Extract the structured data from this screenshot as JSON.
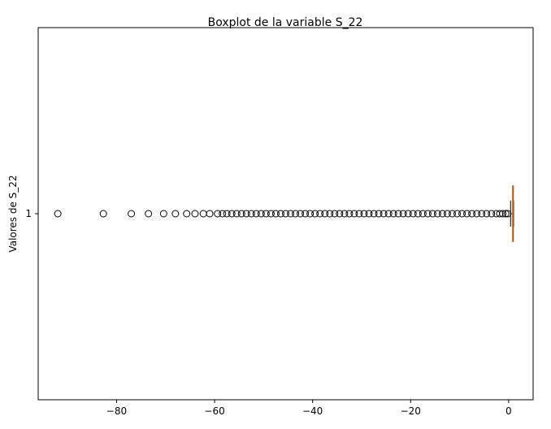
{
  "chart_data": {
    "type": "boxplot",
    "orientation": "horizontal",
    "title": "Boxplot de la variable S_22",
    "xlabel": "",
    "ylabel": "Valores de S_22",
    "category_labels": [
      "1"
    ],
    "xlim": [
      -96,
      5
    ],
    "x_ticks": [
      -80,
      -60,
      -40,
      -20,
      0
    ],
    "x_tick_labels": [
      "−80",
      "−60",
      "−40",
      "−20",
      "0"
    ],
    "box": {
      "whisker_low": 0.4,
      "q1": 0.8,
      "median": 0.85,
      "q3": 0.9,
      "whisker_high": 1.0
    },
    "outliers": [
      -92,
      -82.7,
      -77,
      -73.5,
      -70.4,
      -68,
      -65.7,
      -64,
      -62.3,
      -61,
      -59.4,
      -58.4,
      -57.5,
      -56.5,
      -55.5,
      -54.5,
      -53.5,
      -52.5,
      -51.5,
      -50.5,
      -49.5,
      -48.5,
      -47.5,
      -46.5,
      -45.5,
      -44.5,
      -43.5,
      -42.5,
      -41.5,
      -40.5,
      -39.5,
      -38.5,
      -37.5,
      -36.5,
      -35.5,
      -34.5,
      -33.5,
      -32.5,
      -31.5,
      -30.5,
      -29.5,
      -28.5,
      -27.5,
      -26.5,
      -25.5,
      -24.5,
      -23.5,
      -22.5,
      -21.5,
      -20.5,
      -19.5,
      -18.5,
      -17.5,
      -16.5,
      -15.5,
      -14.5,
      -13.5,
      -12.5,
      -11.5,
      -10.5,
      -9.5,
      -8.5,
      -7.5,
      -6.5,
      -5.5,
      -4.5,
      -3.5,
      -2.5,
      -1.8,
      -1.2,
      -0.6,
      -0.2
    ],
    "colors": {
      "box": "#000000",
      "median": "#ff7f0e",
      "flier": "#000000"
    },
    "grid": false
  }
}
